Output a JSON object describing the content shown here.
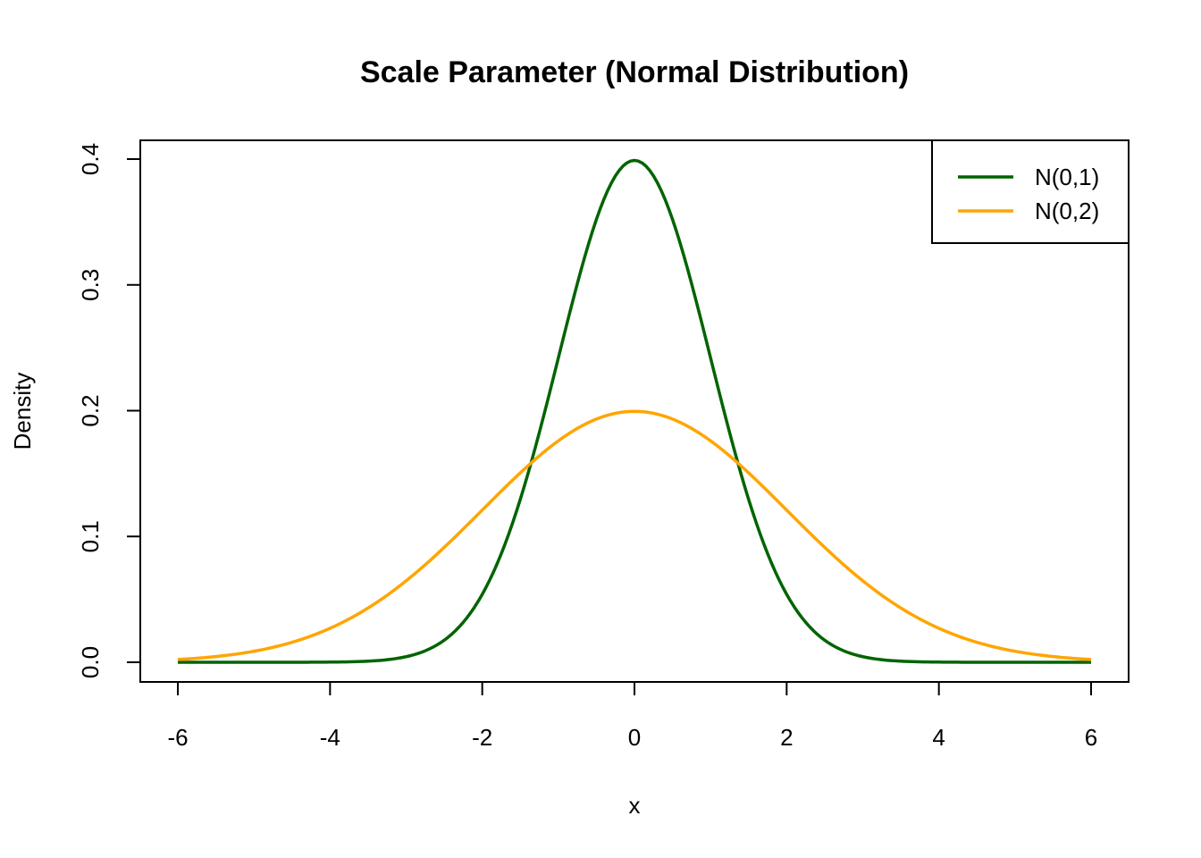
{
  "chart_data": {
    "type": "line",
    "title": "Scale Parameter (Normal Distribution)",
    "xlabel": "x",
    "ylabel": "Density",
    "xlim": [
      -6,
      6
    ],
    "ylim": [
      0,
      0.4
    ],
    "x_ticks": [
      -6,
      -4,
      -2,
      0,
      2,
      4,
      6
    ],
    "y_ticks": [
      0.0,
      0.1,
      0.2,
      0.3,
      0.4
    ],
    "x_tick_labels": [
      "-6",
      "-4",
      "-2",
      "0",
      "2",
      "4",
      "6"
    ],
    "y_tick_labels": [
      "0.0",
      "0.1",
      "0.2",
      "0.3",
      "0.4"
    ],
    "grid": false,
    "legend_position": "top-right",
    "series": [
      {
        "name": "N(0,1)",
        "color": "#006400",
        "mean": 0,
        "sd": 1,
        "x": [
          -6,
          -5.5,
          -5,
          -4.5,
          -4,
          -3.5,
          -3,
          -2.75,
          -2.5,
          -2.25,
          -2,
          -1.75,
          -1.5,
          -1.25,
          -1,
          -0.75,
          -0.5,
          -0.25,
          0,
          0.25,
          0.5,
          0.75,
          1,
          1.25,
          1.5,
          1.75,
          2,
          2.25,
          2.5,
          2.75,
          3,
          3.5,
          4,
          4.5,
          5,
          5.5,
          6
        ],
        "values": [
          0.0,
          0.0,
          0.0,
          0.0,
          0.0001,
          0.0009,
          0.0044,
          0.0091,
          0.0175,
          0.0317,
          0.054,
          0.0863,
          0.1295,
          0.1826,
          0.242,
          0.3011,
          0.3521,
          0.3867,
          0.3989,
          0.3867,
          0.3521,
          0.3011,
          0.242,
          0.1826,
          0.1295,
          0.0863,
          0.054,
          0.0317,
          0.0175,
          0.0091,
          0.0044,
          0.0009,
          0.0001,
          0.0,
          0.0,
          0.0,
          0.0
        ]
      },
      {
        "name": "N(0,2)",
        "color": "#FFA500",
        "mean": 0,
        "sd": 2,
        "x": [
          -6,
          -5.5,
          -5,
          -4.5,
          -4,
          -3.5,
          -3,
          -2.5,
          -2,
          -1.5,
          -1,
          -0.5,
          0,
          0.5,
          1,
          1.5,
          2,
          2.5,
          3,
          3.5,
          4,
          4.5,
          5,
          5.5,
          6
        ],
        "values": [
          0.0022,
          0.0045,
          0.0088,
          0.0158,
          0.027,
          0.0431,
          0.0648,
          0.0913,
          0.121,
          0.1506,
          0.176,
          0.1933,
          0.1995,
          0.1933,
          0.176,
          0.1506,
          0.121,
          0.0913,
          0.0648,
          0.0431,
          0.027,
          0.0158,
          0.0088,
          0.0045,
          0.0022
        ]
      }
    ]
  }
}
